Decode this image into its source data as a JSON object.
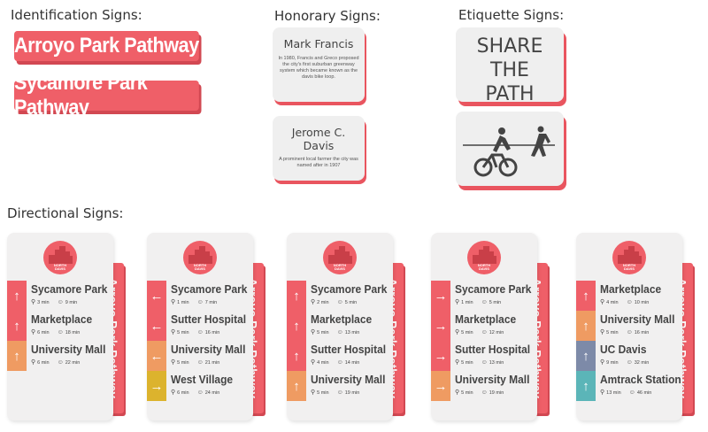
{
  "sections": {
    "identification": "Identification Signs:",
    "honorary": "Honorary Signs:",
    "etiquette": "Etiquette Signs:",
    "directional": "Directional Signs:"
  },
  "identification_signs": [
    "Arroyo Park Pathway",
    "Sycamore Park Pathway"
  ],
  "honorary_signs": [
    {
      "name": "Mark Francis",
      "description": "In 1980, Francis and Greco proposed the city's first suburban greenway system which became known as the davis bike loop."
    },
    {
      "name": "Jerome C. Davis",
      "description": "A prominent local farmer the city was named after in 1907"
    }
  ],
  "etiquette": {
    "share_text": [
      "SHARE",
      "THE",
      "PATH"
    ]
  },
  "colors": {
    "accent": "#ef5f68",
    "orange": "#ef9b62",
    "gold": "#dcb32d",
    "slate": "#7d8aa8",
    "teal": "#5bb5b8",
    "card": "#f1f0f0"
  },
  "directional": {
    "side_label": "Arroyo Park Pathway",
    "logo_text": [
      "NORTH",
      "DAVIS"
    ],
    "signs": [
      {
        "rows": [
          {
            "dest": "Sycamore Park",
            "arrow": "↑",
            "color": "#ef5f68",
            "bike": "3 min",
            "walk": "9 min"
          },
          {
            "dest": "Marketplace",
            "arrow": "↑",
            "color": "#ef5f68",
            "bike": "6 min",
            "walk": "18 min"
          },
          {
            "dest": "University Mall",
            "arrow": "↑",
            "color": "#ef9b62",
            "bike": "6 min",
            "walk": "22 min"
          }
        ]
      },
      {
        "rows": [
          {
            "dest": "Sycamore Park",
            "arrow": "←",
            "color": "#ef5f68",
            "bike": "1 min",
            "walk": "7 min"
          },
          {
            "dest": "Sutter Hospital",
            "arrow": "←",
            "color": "#ef5f68",
            "bike": "5 min",
            "walk": "16 min"
          },
          {
            "dest": "University Mall",
            "arrow": "←",
            "color": "#ef9b62",
            "bike": "5 min",
            "walk": "21 min"
          },
          {
            "dest": "West Village",
            "arrow": "→",
            "color": "#dcb32d",
            "bike": "6 min",
            "walk": "24 min"
          }
        ]
      },
      {
        "rows": [
          {
            "dest": "Sycamore Park",
            "arrow": "↑",
            "color": "#ef5f68",
            "bike": "2 min",
            "walk": "5 min"
          },
          {
            "dest": "Marketplace",
            "arrow": "↑",
            "color": "#ef5f68",
            "bike": "5 min",
            "walk": "13 min"
          },
          {
            "dest": "Sutter Hospital",
            "arrow": "↑",
            "color": "#ef5f68",
            "bike": "4 min",
            "walk": "14 min"
          },
          {
            "dest": "University Mall",
            "arrow": "↑",
            "color": "#ef9b62",
            "bike": "5 min",
            "walk": "19 min"
          }
        ]
      },
      {
        "rows": [
          {
            "dest": "Sycamore Park",
            "arrow": "→",
            "color": "#ef5f68",
            "bike": "1 min",
            "walk": "5 min"
          },
          {
            "dest": "Marketplace",
            "arrow": "→",
            "color": "#ef5f68",
            "bike": "5 min",
            "walk": "12 min"
          },
          {
            "dest": "Sutter Hospital",
            "arrow": "→",
            "color": "#ef5f68",
            "bike": "5 min",
            "walk": "13 min"
          },
          {
            "dest": "University Mall",
            "arrow": "→",
            "color": "#ef9b62",
            "bike": "5 min",
            "walk": "19 min"
          }
        ]
      },
      {
        "rows": [
          {
            "dest": "Marketplace",
            "arrow": "↑",
            "color": "#ef5f68",
            "bike": "4 min",
            "walk": "10 min"
          },
          {
            "dest": "University Mall",
            "arrow": "↑",
            "color": "#ef9b62",
            "bike": "5 min",
            "walk": "16 min"
          },
          {
            "dest": "UC Davis",
            "arrow": "↑",
            "color": "#7d8aa8",
            "bike": "9 min",
            "walk": "32 min"
          },
          {
            "dest": "Amtrack Station",
            "arrow": "↑",
            "color": "#5bb5b8",
            "bike": "13 min",
            "walk": "46 min"
          }
        ]
      }
    ]
  }
}
